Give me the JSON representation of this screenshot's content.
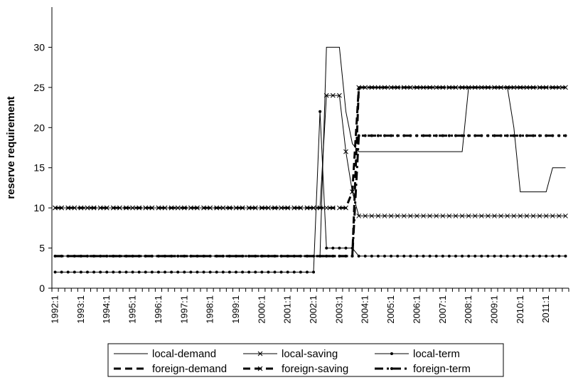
{
  "chart_data": {
    "type": "line",
    "title": "",
    "xlabel": "",
    "ylabel": "reserve requirement",
    "ylim": [
      0,
      35
    ],
    "yticks": [
      0,
      5,
      10,
      15,
      20,
      25,
      30
    ],
    "grid": false,
    "legend_position": "bottom",
    "x_start": "1992:1",
    "x_end": "2011:4",
    "x_ticks": [
      "1992:1",
      "1993:1",
      "1994:1",
      "1995:1",
      "1996:1",
      "1997:1",
      "1998:1",
      "1999:1",
      "2000:1",
      "2001:1",
      "2002:1",
      "2003:1",
      "2004:1",
      "2005:1",
      "2006:1",
      "2007:1",
      "2008:1",
      "2009:1",
      "2010:1",
      "2011:1"
    ],
    "series": [
      {
        "name": "local-demand",
        "style": "solid-thin",
        "marker": "none",
        "points": [
          [
            "1992:1",
            4
          ],
          [
            "2002:2",
            4
          ],
          [
            "2002:3",
            30
          ],
          [
            "2002:4",
            30
          ],
          [
            "2003:1",
            30
          ],
          [
            "2003:2",
            22
          ],
          [
            "2003:3",
            18
          ],
          [
            "2003:4",
            17
          ],
          [
            "2007:4",
            17
          ],
          [
            "2008:1",
            25
          ],
          [
            "2009:3",
            25
          ],
          [
            "2009:4",
            20
          ],
          [
            "2010:1",
            12
          ],
          [
            "2011:1",
            12
          ],
          [
            "2011:2",
            15
          ],
          [
            "2011:4",
            15
          ]
        ]
      },
      {
        "name": "local-saving",
        "style": "solid-thin",
        "marker": "x",
        "points": [
          [
            "1992:1",
            10
          ],
          [
            "2002:2",
            10
          ],
          [
            "2002:3",
            24
          ],
          [
            "2003:1",
            24
          ],
          [
            "2003:2",
            17
          ],
          [
            "2003:3",
            12
          ],
          [
            "2003:4",
            9
          ],
          [
            "2011:4",
            9
          ]
        ]
      },
      {
        "name": "local-term",
        "style": "solid-thin",
        "marker": "dot",
        "points": [
          [
            "1992:1",
            2
          ],
          [
            "2002:1",
            2
          ],
          [
            "2002:2",
            22
          ],
          [
            "2002:3",
            5
          ],
          [
            "2003:3",
            5
          ],
          [
            "2003:4",
            4
          ],
          [
            "2011:4",
            4
          ]
        ]
      },
      {
        "name": "foreign-demand",
        "style": "dashed-thick",
        "marker": "none",
        "points": [
          [
            "1992:1",
            4
          ],
          [
            "2003:3",
            4
          ],
          [
            "2003:4",
            25
          ],
          [
            "2011:4",
            25
          ]
        ]
      },
      {
        "name": "foreign-saving",
        "style": "dashed-thick",
        "marker": "x",
        "points": [
          [
            "1992:1",
            10
          ],
          [
            "2003:2",
            10
          ],
          [
            "2003:3",
            12
          ],
          [
            "2003:4",
            25
          ],
          [
            "2011:4",
            25
          ]
        ]
      },
      {
        "name": "foreign-term",
        "style": "dashdot-thick",
        "marker": "dot",
        "points": [
          [
            "1992:1",
            4
          ],
          [
            "2003:3",
            4
          ],
          [
            "2003:4",
            19
          ],
          [
            "2011:4",
            19
          ]
        ]
      }
    ]
  }
}
